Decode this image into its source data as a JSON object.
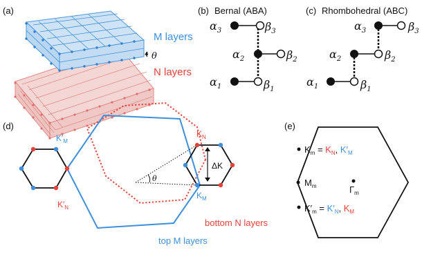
{
  "panels": {
    "a": {
      "label": "(a)",
      "top_layers": "M layers",
      "bottom_layers": "N layers",
      "twist_symbol": "θ"
    },
    "b": {
      "label": "(b)",
      "title": "Bernal (ABA)",
      "sites": {
        "a3": "α",
        "a3_sub": "3",
        "b3": "β",
        "b3_sub": "3",
        "a2": "α",
        "a2_sub": "2",
        "b2": "β",
        "b2_sub": "2",
        "a1": "α",
        "a1_sub": "1",
        "b1": "β",
        "b1_sub": "1"
      }
    },
    "c": {
      "label": "(c)",
      "title": "Rhombohedral (ABC)",
      "sites": {
        "a3": "α",
        "a3_sub": "3",
        "b3": "β",
        "b3_sub": "3",
        "a2": "α",
        "a2_sub": "2",
        "b2": "β",
        "b2_sub": "2",
        "a1": "α",
        "a1_sub": "1",
        "b1": "β",
        "b1_sub": "1"
      }
    },
    "d": {
      "label": "(d)",
      "KM_left": {
        "base": "K",
        "prime": "′",
        "sub": "M"
      },
      "KN_left": {
        "base": "K",
        "prime": "′",
        "sub": "N"
      },
      "KN_right": {
        "base": "K",
        "sub": "N"
      },
      "KM_right": {
        "base": "K",
        "sub": "M"
      },
      "delta_k": "ΔK",
      "theta": "θ",
      "bottom_label": "bottom N layers",
      "top_label": "top M layers"
    },
    "e": {
      "label": "(e)",
      "Km_line": {
        "lhs": "K",
        "lhs_sub": "m",
        "eq": " = ",
        "n": "K",
        "n_sub": "N",
        "comma": ", ",
        "m": "K",
        "m_prime": "′",
        "m_sub": "M"
      },
      "Mm_line": {
        "lhs": "M",
        "lhs_sub": "m"
      },
      "Gamma_line": {
        "lhs": "Γ",
        "lhs_sub": "m"
      },
      "Kpm_line": {
        "lhs": "K",
        "lhs_prime": "′",
        "lhs_sub": "m",
        "eq": " = ",
        "n": "K",
        "n_prime": "′",
        "n_sub": "N",
        "comma": ", ",
        "m": "K",
        "m_sub": "M"
      }
    }
  },
  "colors": {
    "blue": "#3d8fdc",
    "red": "#e8413a",
    "black": "#111111",
    "pink_lattice": "#e59b98",
    "blue_lattice": "#4a97dc"
  }
}
